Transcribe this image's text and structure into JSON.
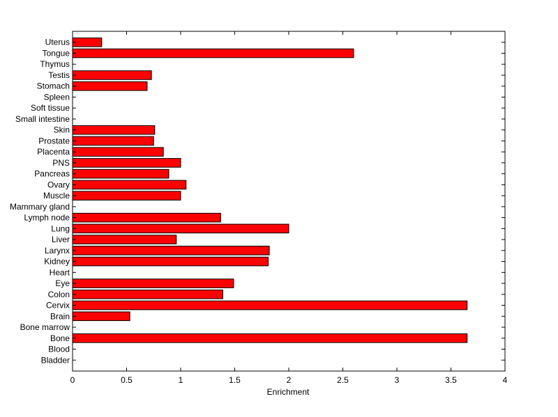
{
  "chart_data": {
    "type": "bar",
    "orientation": "horizontal",
    "title": "",
    "xlabel": "Enrichment",
    "ylabel": "",
    "xlim": [
      0,
      4
    ],
    "xticks": [
      "0",
      "0.5",
      "1",
      "1.5",
      "2",
      "2.5",
      "3",
      "3.5",
      "4"
    ],
    "grid": false,
    "bar_color": "#ff0000",
    "edge_color": "#000000",
    "categories": [
      "Bladder",
      "Blood",
      "Bone",
      "Bone marrow",
      "Brain",
      "Cervix",
      "Colon",
      "Eye",
      "Heart",
      "Kidney",
      "Larynx",
      "Liver",
      "Lung",
      "Lymph node",
      "Mammary gland",
      "Muscle",
      "Ovary",
      "Pancreas",
      "PNS",
      "Placenta",
      "Prostate",
      "Skin",
      "Small intestine",
      "Soft tissue",
      "Spleen",
      "Stomach",
      "Testis",
      "Thymus",
      "Tongue",
      "Uterus"
    ],
    "values": [
      0,
      0,
      3.65,
      0,
      0.53,
      3.65,
      1.39,
      1.49,
      0,
      1.81,
      1.82,
      0.96,
      2.0,
      1.37,
      0,
      1.0,
      1.05,
      0.89,
      1.0,
      0.84,
      0.75,
      0.76,
      0,
      0,
      0,
      0.69,
      0.73,
      0,
      2.6,
      0.27
    ]
  }
}
